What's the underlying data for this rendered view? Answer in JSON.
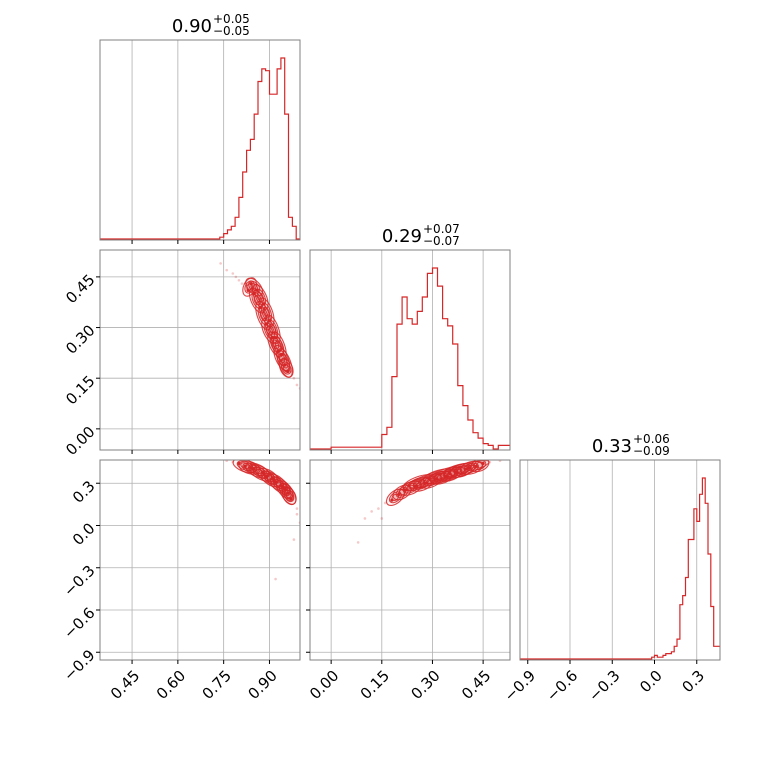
{
  "chart_data": {
    "type": "corner",
    "line_color": "#d62728",
    "grid": true,
    "parameters": [
      {
        "title": {
          "median": "0.90",
          "plus": "+0.05",
          "minus": "−0.05"
        },
        "range": [
          0.345,
          1.0
        ],
        "ticks": [
          {
            "v": 0.45,
            "label": "0.45"
          },
          {
            "v": 0.6,
            "label": "0.60"
          },
          {
            "v": 0.75,
            "label": "0.75"
          },
          {
            "v": 0.9,
            "label": "0.90"
          }
        ],
        "hist": {
          "edges": [
            0.345,
            0.7375,
            0.75,
            0.7625,
            0.775,
            0.7875,
            0.8,
            0.8125,
            0.825,
            0.8375,
            0.85,
            0.8625,
            0.875,
            0.8875,
            0.9,
            0.9125,
            0.925,
            0.9375,
            0.95,
            0.9625,
            0.975,
            0.9875,
            1.0
          ],
          "counts": [
            0.0,
            0.01,
            0.03,
            0.05,
            0.07,
            0.12,
            0.23,
            0.37,
            0.49,
            0.55,
            0.69,
            0.87,
            0.94,
            0.93,
            0.8,
            0.8,
            0.94,
            1.0,
            0.69,
            0.12,
            0.07,
            0.0
          ]
        }
      },
      {
        "title": {
          "median": "0.29",
          "plus": "+0.07",
          "minus": "−0.07"
        },
        "range": [
          -0.0626,
          0.5296
        ],
        "ticks": [
          {
            "v": 0.0,
            "label": "0.00"
          },
          {
            "v": 0.15,
            "label": "0.15"
          },
          {
            "v": 0.3,
            "label": "0.30"
          },
          {
            "v": 0.45,
            "label": "0.45"
          }
        ],
        "hist": {
          "edges": [
            -0.0626,
            0.0,
            0.15,
            0.165,
            0.18,
            0.195,
            0.21,
            0.225,
            0.24,
            0.255,
            0.27,
            0.285,
            0.3,
            0.315,
            0.33,
            0.345,
            0.36,
            0.375,
            0.39,
            0.405,
            0.42,
            0.435,
            0.45,
            0.465,
            0.48,
            0.495,
            0.5296
          ],
          "counts": [
            0.0,
            0.01,
            0.08,
            0.12,
            0.4,
            0.69,
            0.84,
            0.72,
            0.69,
            0.76,
            0.84,
            0.97,
            1.0,
            0.9,
            0.72,
            0.68,
            0.58,
            0.35,
            0.24,
            0.16,
            0.09,
            0.06,
            0.03,
            0.02,
            0.0,
            0.02
          ]
        }
      },
      {
        "title": {
          "median": "0.33",
          "plus": "+0.06",
          "minus": "−0.09"
        },
        "range": [
          -0.955,
          0.465
        ],
        "ticks": [
          {
            "v": -0.9,
            "label": "−0.9"
          },
          {
            "v": -0.6,
            "label": "−0.6"
          },
          {
            "v": -0.3,
            "label": "−0.3"
          },
          {
            "v": 0.0,
            "label": "0.0"
          },
          {
            "v": 0.3,
            "label": "0.3"
          }
        ],
        "hist": {
          "edges": [
            -0.955,
            -0.02,
            0.0,
            0.02,
            0.04,
            0.06,
            0.08,
            0.1,
            0.12,
            0.14,
            0.16,
            0.18,
            0.2,
            0.22,
            0.24,
            0.26,
            0.28,
            0.3,
            0.32,
            0.34,
            0.36,
            0.38,
            0.4,
            0.42,
            0.44,
            0.465
          ],
          "counts": [
            0.0,
            0.01,
            0.02,
            0.01,
            0.01,
            0.02,
            0.03,
            0.03,
            0.04,
            0.07,
            0.11,
            0.3,
            0.35,
            0.45,
            0.66,
            0.66,
            0.83,
            0.76,
            0.91,
            1.0,
            0.86,
            0.58,
            0.29,
            0.07,
            0.07
          ]
        }
      }
    ],
    "pairs": [
      {
        "row": 1,
        "col": 0,
        "contour_points": [
          [
            0.85,
            0.4
          ],
          [
            0.87,
            0.36
          ],
          [
            0.89,
            0.31
          ],
          [
            0.91,
            0.27
          ],
          [
            0.93,
            0.23
          ],
          [
            0.95,
            0.19
          ],
          [
            0.96,
            0.17
          ],
          [
            0.94,
            0.22
          ],
          [
            0.92,
            0.27
          ],
          [
            0.9,
            0.32
          ],
          [
            0.88,
            0.37
          ],
          [
            0.86,
            0.41
          ],
          [
            0.84,
            0.43
          ],
          [
            0.83,
            0.41
          ]
        ],
        "scatter": [
          [
            0.74,
            0.49
          ],
          [
            0.76,
            0.47
          ],
          [
            0.78,
            0.46
          ],
          [
            0.8,
            0.44
          ],
          [
            0.82,
            0.43
          ],
          [
            0.97,
            0.17
          ],
          [
            0.98,
            0.15
          ],
          [
            0.99,
            0.13
          ],
          [
            1.0,
            0.12
          ],
          [
            0.79,
            0.45
          ],
          [
            0.81,
            0.43
          ]
        ]
      },
      {
        "row": 2,
        "col": 0,
        "contour_points": [
          [
            0.8,
            0.44
          ],
          [
            0.84,
            0.41
          ],
          [
            0.88,
            0.37
          ],
          [
            0.91,
            0.33
          ],
          [
            0.94,
            0.28
          ],
          [
            0.96,
            0.23
          ],
          [
            0.97,
            0.19
          ],
          [
            0.95,
            0.26
          ],
          [
            0.92,
            0.31
          ],
          [
            0.89,
            0.35
          ],
          [
            0.85,
            0.4
          ],
          [
            0.82,
            0.42
          ]
        ],
        "scatter": [
          [
            0.76,
            0.46
          ],
          [
            0.78,
            0.45
          ],
          [
            0.99,
            0.08
          ],
          [
            1.0,
            0.02
          ],
          [
            0.99,
            0.12
          ],
          [
            0.92,
            -0.38
          ],
          [
            0.98,
            -0.1
          ]
        ]
      },
      {
        "row": 2,
        "col": 1,
        "contour_points": [
          [
            0.18,
            0.18
          ],
          [
            0.2,
            0.22
          ],
          [
            0.22,
            0.25
          ],
          [
            0.25,
            0.28
          ],
          [
            0.28,
            0.3
          ],
          [
            0.31,
            0.33
          ],
          [
            0.34,
            0.35
          ],
          [
            0.37,
            0.38
          ],
          [
            0.4,
            0.4
          ],
          [
            0.43,
            0.42
          ],
          [
            0.45,
            0.44
          ],
          [
            0.23,
            0.28
          ],
          [
            0.29,
            0.33
          ],
          [
            0.35,
            0.37
          ],
          [
            0.41,
            0.41
          ]
        ],
        "scatter": [
          [
            0.12,
            0.1
          ],
          [
            0.14,
            0.12
          ],
          [
            0.1,
            0.05
          ],
          [
            0.08,
            -0.12
          ],
          [
            0.15,
            0.05
          ],
          [
            0.47,
            0.45
          ],
          [
            0.5,
            0.46
          ],
          [
            0.16,
            0.16
          ]
        ]
      }
    ]
  }
}
